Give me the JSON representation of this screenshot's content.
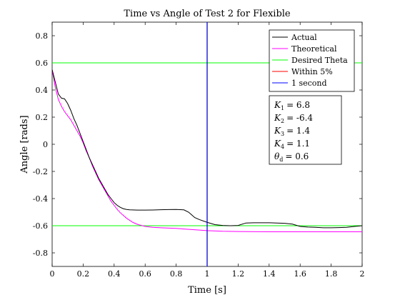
{
  "chart_data": {
    "type": "line",
    "title": "Time vs Angle of Test 2 for Flexible",
    "xlabel": "Time [s]",
    "ylabel": "Angle [rads]",
    "xlim": [
      0,
      2
    ],
    "ylim": [
      -0.9,
      0.9
    ],
    "xticks": [
      0,
      0.2,
      0.4,
      0.6,
      0.8,
      1,
      1.2,
      1.4,
      1.6,
      1.8,
      2
    ],
    "xtick_labels": [
      "0",
      "0.2",
      "0.4",
      "0.6",
      "0.8",
      "1",
      "1.2",
      "1.4",
      "1.6",
      "1.8",
      "2"
    ],
    "yticks": [
      0.8,
      0.6,
      0.4,
      0.2,
      0,
      -0.2,
      -0.4,
      -0.6,
      -0.8
    ],
    "ytick_labels": [
      "0.8",
      "0.6",
      "0.4",
      "0.2",
      "0",
      "-0.2",
      "-0.4",
      "-0.6",
      "-0.8"
    ],
    "grid": false,
    "legend_position": "top-right",
    "series": [
      {
        "name": "Actual",
        "color": "#000000",
        "x": [
          0,
          0.02,
          0.04,
          0.06,
          0.08,
          0.1,
          0.12,
          0.14,
          0.16,
          0.18,
          0.2,
          0.22,
          0.24,
          0.26,
          0.28,
          0.3,
          0.32,
          0.34,
          0.36,
          0.38,
          0.4,
          0.42,
          0.44,
          0.46,
          0.48,
          0.5,
          0.55,
          0.6,
          0.65,
          0.7,
          0.75,
          0.8,
          0.85,
          0.88,
          0.9,
          0.92,
          0.95,
          1.0,
          1.05,
          1.1,
          1.15,
          1.2,
          1.25,
          1.3,
          1.35,
          1.4,
          1.45,
          1.5,
          1.55,
          1.6,
          1.65,
          1.7,
          1.75,
          1.8,
          1.85,
          1.9,
          1.95,
          2.0
        ],
        "y": [
          0.55,
          0.46,
          0.37,
          0.34,
          0.335,
          0.3,
          0.25,
          0.19,
          0.14,
          0.08,
          0.02,
          -0.04,
          -0.1,
          -0.15,
          -0.2,
          -0.25,
          -0.29,
          -0.33,
          -0.37,
          -0.4,
          -0.43,
          -0.45,
          -0.465,
          -0.475,
          -0.48,
          -0.483,
          -0.485,
          -0.485,
          -0.484,
          -0.482,
          -0.481,
          -0.48,
          -0.483,
          -0.5,
          -0.52,
          -0.54,
          -0.555,
          -0.575,
          -0.592,
          -0.598,
          -0.6,
          -0.598,
          -0.58,
          -0.578,
          -0.578,
          -0.578,
          -0.58,
          -0.582,
          -0.588,
          -0.605,
          -0.61,
          -0.612,
          -0.615,
          -0.615,
          -0.614,
          -0.612,
          -0.605,
          -0.6
        ]
      },
      {
        "name": "Theoretical",
        "color": "#ff00ff",
        "x": [
          0,
          0.02,
          0.04,
          0.06,
          0.08,
          0.1,
          0.12,
          0.14,
          0.16,
          0.18,
          0.2,
          0.22,
          0.24,
          0.26,
          0.28,
          0.3,
          0.32,
          0.34,
          0.36,
          0.38,
          0.4,
          0.42,
          0.44,
          0.46,
          0.48,
          0.5,
          0.52,
          0.55,
          0.6,
          0.65,
          0.7,
          0.8,
          0.9,
          1.0,
          1.1,
          1.2,
          1.4,
          1.6,
          1.8,
          2.0
        ],
        "y": [
          0.55,
          0.42,
          0.33,
          0.28,
          0.24,
          0.21,
          0.18,
          0.14,
          0.1,
          0.06,
          0.01,
          -0.05,
          -0.1,
          -0.16,
          -0.21,
          -0.26,
          -0.3,
          -0.34,
          -0.38,
          -0.42,
          -0.45,
          -0.48,
          -0.505,
          -0.525,
          -0.545,
          -0.56,
          -0.575,
          -0.59,
          -0.605,
          -0.612,
          -0.615,
          -0.62,
          -0.628,
          -0.636,
          -0.641,
          -0.643,
          -0.645,
          -0.645,
          -0.645,
          -0.645
        ]
      },
      {
        "name": "Desired Theta",
        "color": "#00ff00",
        "x": [
          0,
          2
        ],
        "y": [
          0.6,
          0.6
        ]
      },
      {
        "name": "Desired Theta",
        "color": "#00ff00",
        "x": [
          0,
          2
        ],
        "y": [
          -0.6,
          -0.6
        ]
      },
      {
        "name": "Within 5%",
        "color": "#ff0000",
        "x": [
          1,
          1
        ],
        "y": [
          -0.9,
          0.9
        ]
      },
      {
        "name": "1 second",
        "color": "#0000ff",
        "x": [
          1,
          1
        ],
        "y": [
          -0.9,
          0.9
        ]
      }
    ],
    "legend": [
      {
        "name": "Actual",
        "color": "#000000"
      },
      {
        "name": "Theoretical",
        "color": "#ff00ff"
      },
      {
        "name": "Desired Theta",
        "color": "#00ff00"
      },
      {
        "name": "Within 5%",
        "color": "#ff0000"
      },
      {
        "name": "1 second",
        "color": "#0000ff"
      }
    ],
    "annotation": [
      {
        "symbol": "K",
        "sub": "1",
        "value": "= 6.8"
      },
      {
        "symbol": "K",
        "sub": "2",
        "value": "= -6.4"
      },
      {
        "symbol": "K",
        "sub": "3",
        "value": "= 1.4"
      },
      {
        "symbol": "K",
        "sub": "4",
        "value": "= 1.1"
      },
      {
        "symbol": "θ",
        "sub": "d",
        "value": "= 0.6"
      }
    ]
  }
}
